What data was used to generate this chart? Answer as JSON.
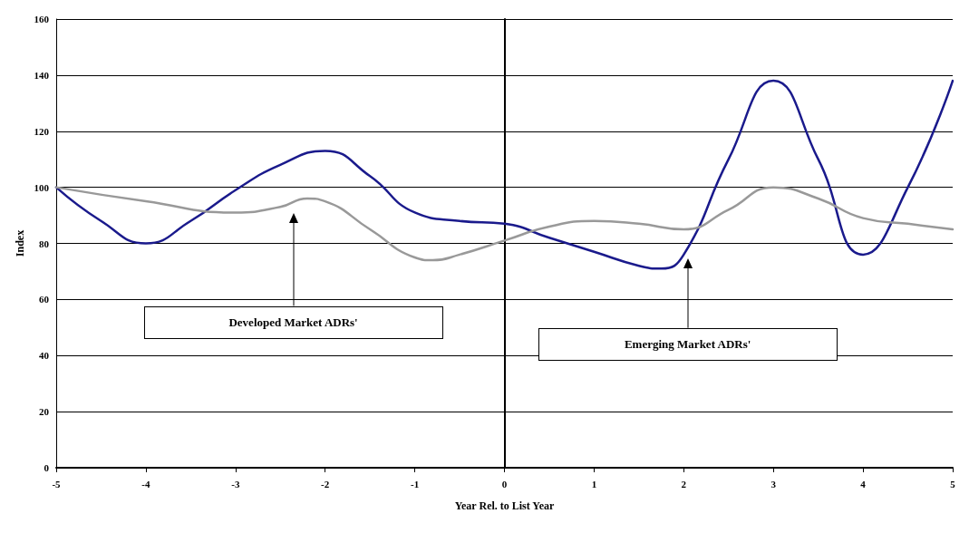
{
  "chart_data": {
    "type": "line",
    "xlabel": "Year Rel. to List Year",
    "ylabel": "Index",
    "xlim": [
      -5,
      5
    ],
    "xticks": [
      -5,
      -4,
      -3,
      -2,
      -1,
      0,
      1,
      2,
      3,
      4,
      5
    ],
    "ylim": [
      0,
      160
    ],
    "yticks": [
      0,
      20,
      40,
      60,
      80,
      100,
      120,
      140,
      160
    ],
    "grid": "y",
    "marker": "none",
    "line_style": "solid",
    "series": [
      {
        "color": "#1a1a8c",
        "x": [
          -5,
          -4.5,
          -4,
          -3.5,
          -3,
          -2.5,
          -2,
          -1.5,
          -1,
          -0.5,
          0,
          0.5,
          1,
          1.5,
          1.75,
          2,
          2.5,
          3,
          3.5,
          4,
          4.5,
          5
        ],
        "values": [
          100,
          88,
          80,
          88,
          99,
          108,
          113,
          104,
          91,
          88,
          87,
          82,
          77,
          72,
          71,
          76,
          110,
          138,
          110,
          76,
          100,
          138
        ]
      },
      {
        "color": "#999999",
        "x": [
          -5,
          -4,
          -3,
          -2.5,
          -2.2,
          -2,
          -1.5,
          -1,
          -0.8,
          -0.5,
          0,
          0.5,
          1,
          1.5,
          2,
          2.5,
          3,
          3.5,
          4,
          4.5,
          5
        ],
        "values": [
          100,
          95,
          91,
          93,
          96,
          95,
          85,
          75,
          74,
          76,
          81,
          86,
          88,
          87,
          85,
          92,
          100,
          96,
          89,
          87,
          85
        ]
      }
    ],
    "annotations": [
      "Developed Market ADRs'",
      "Emerging Market ADRs'"
    ]
  }
}
